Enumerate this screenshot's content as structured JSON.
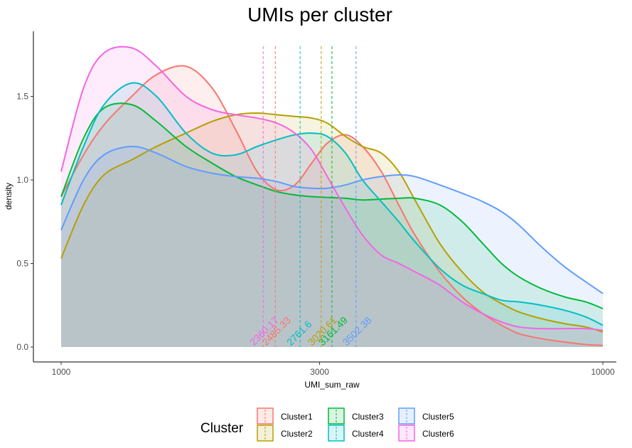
{
  "chart_data": {
    "type": "area",
    "title": "UMIs per cluster",
    "xlabel": "UMI_sum_raw",
    "ylabel": "density",
    "x_scale": "log10",
    "xlim": [
      1000,
      10000
    ],
    "ylim": [
      0,
      1.8
    ],
    "x_ticks": [
      {
        "value": 1000,
        "label": "1000"
      },
      {
        "value": 3000,
        "label": "3000"
      },
      {
        "value": 10000,
        "label": "10000"
      }
    ],
    "y_ticks": [
      {
        "value": 0.0,
        "label": "0.0"
      },
      {
        "value": 0.5,
        "label": "0.5"
      },
      {
        "value": 1.0,
        "label": "1.0"
      },
      {
        "value": 1.5,
        "label": "1.5"
      }
    ],
    "grid": false,
    "legend": {
      "title": "Cluster",
      "placement": "bottom"
    },
    "x": [
      1000,
      1100,
      1200,
      1350,
      1500,
      1700,
      1900,
      2100,
      2300,
      2500,
      2700,
      2900,
      3100,
      3350,
      3600,
      3900,
      4200,
      4500,
      5000,
      5500,
      6000,
      6500,
      7000,
      7700,
      8500,
      9300,
      10000
    ],
    "series": [
      {
        "name": "Cluster1",
        "color": "#F8766D",
        "mean_label": "2485.33",
        "mean": 2485.33,
        "values": [
          0.9,
          1.15,
          1.33,
          1.5,
          1.63,
          1.68,
          1.55,
          1.3,
          1.05,
          0.94,
          0.97,
          1.1,
          1.22,
          1.27,
          1.2,
          1.05,
          0.85,
          0.67,
          0.45,
          0.3,
          0.2,
          0.13,
          0.08,
          0.05,
          0.03,
          0.015,
          0.01
        ]
      },
      {
        "name": "Cluster2",
        "color": "#B79F00",
        "mean_label": "3020.61",
        "mean": 3020.61,
        "values": [
          0.53,
          0.85,
          1.03,
          1.12,
          1.2,
          1.28,
          1.35,
          1.39,
          1.4,
          1.39,
          1.38,
          1.37,
          1.34,
          1.26,
          1.2,
          1.16,
          1.05,
          0.88,
          0.62,
          0.45,
          0.33,
          0.26,
          0.21,
          0.17,
          0.14,
          0.12,
          0.09
        ]
      },
      {
        "name": "Cluster3",
        "color": "#00BA38",
        "mean_label": "3161.49",
        "mean": 3161.49,
        "values": [
          0.9,
          1.25,
          1.43,
          1.45,
          1.35,
          1.2,
          1.1,
          1.02,
          0.97,
          0.93,
          0.91,
          0.9,
          0.895,
          0.89,
          0.88,
          0.885,
          0.89,
          0.89,
          0.85,
          0.75,
          0.62,
          0.5,
          0.42,
          0.35,
          0.3,
          0.27,
          0.23
        ]
      },
      {
        "name": "Cluster4",
        "color": "#00BFC4",
        "mean_label": "2761.6",
        "mean": 2761.6,
        "values": [
          0.85,
          1.2,
          1.45,
          1.58,
          1.5,
          1.28,
          1.16,
          1.15,
          1.2,
          1.24,
          1.27,
          1.28,
          1.26,
          1.16,
          1.0,
          0.87,
          0.75,
          0.63,
          0.47,
          0.37,
          0.32,
          0.28,
          0.27,
          0.25,
          0.22,
          0.18,
          0.13
        ]
      },
      {
        "name": "Cluster5",
        "color": "#619CFF",
        "mean_label": "3502.38",
        "mean": 3502.38,
        "values": [
          0.7,
          1.0,
          1.15,
          1.2,
          1.16,
          1.08,
          1.04,
          1.02,
          1.01,
          0.99,
          0.96,
          0.95,
          0.95,
          0.97,
          1.0,
          1.02,
          1.03,
          1.02,
          0.97,
          0.92,
          0.87,
          0.81,
          0.73,
          0.6,
          0.48,
          0.39,
          0.32
        ]
      },
      {
        "name": "Cluster6",
        "color": "#F564E3",
        "mean_label": "2360.17",
        "mean": 2360.17,
        "values": [
          1.05,
          1.55,
          1.76,
          1.79,
          1.68,
          1.5,
          1.42,
          1.39,
          1.37,
          1.34,
          1.28,
          1.18,
          1.02,
          0.83,
          0.67,
          0.55,
          0.5,
          0.45,
          0.37,
          0.27,
          0.2,
          0.15,
          0.12,
          0.11,
          0.11,
          0.11,
          0.1
        ]
      }
    ]
  }
}
